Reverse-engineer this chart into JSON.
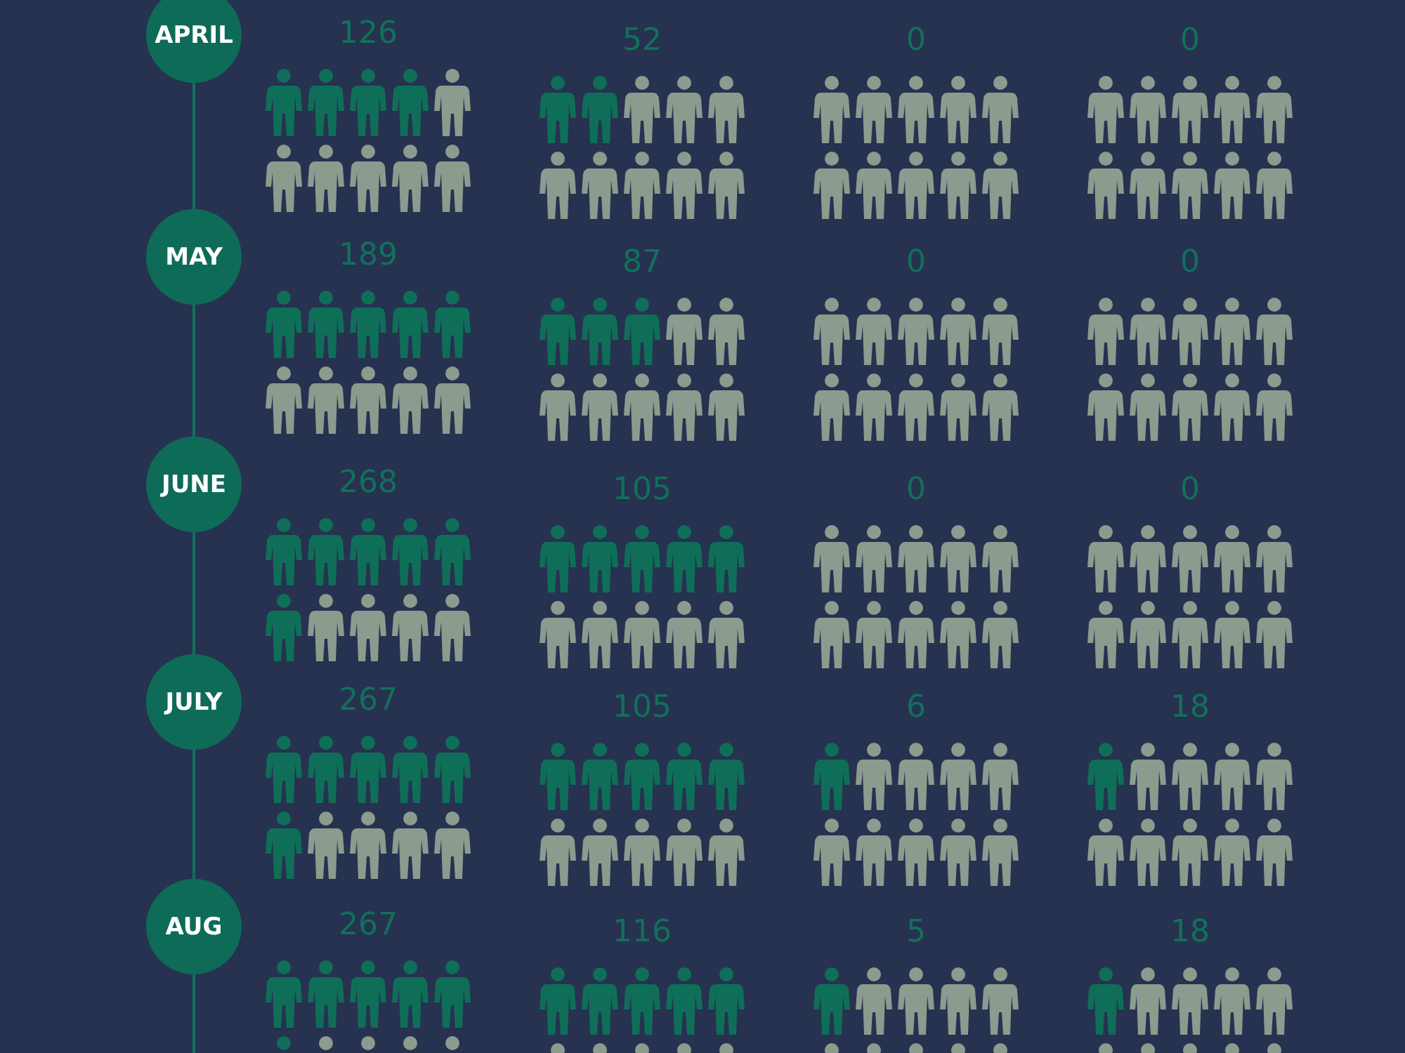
{
  "chart_data": {
    "type": "other",
    "categories": [
      "APRIL",
      "MAY",
      "JUNE",
      "JULY",
      "AUG"
    ],
    "data_labels": true,
    "series": [
      {
        "color": "#12705a",
        "values": [
          126,
          189,
          268,
          267,
          267
        ]
      },
      {
        "color": "#12705a",
        "values": [
          52,
          87,
          105,
          105,
          116
        ]
      },
      {
        "color": "#12705a",
        "values": [
          0,
          0,
          0,
          6,
          5
        ]
      },
      {
        "color": "#12705a",
        "values": [
          0,
          0,
          0,
          18,
          18
        ]
      }
    ]
  }
}
